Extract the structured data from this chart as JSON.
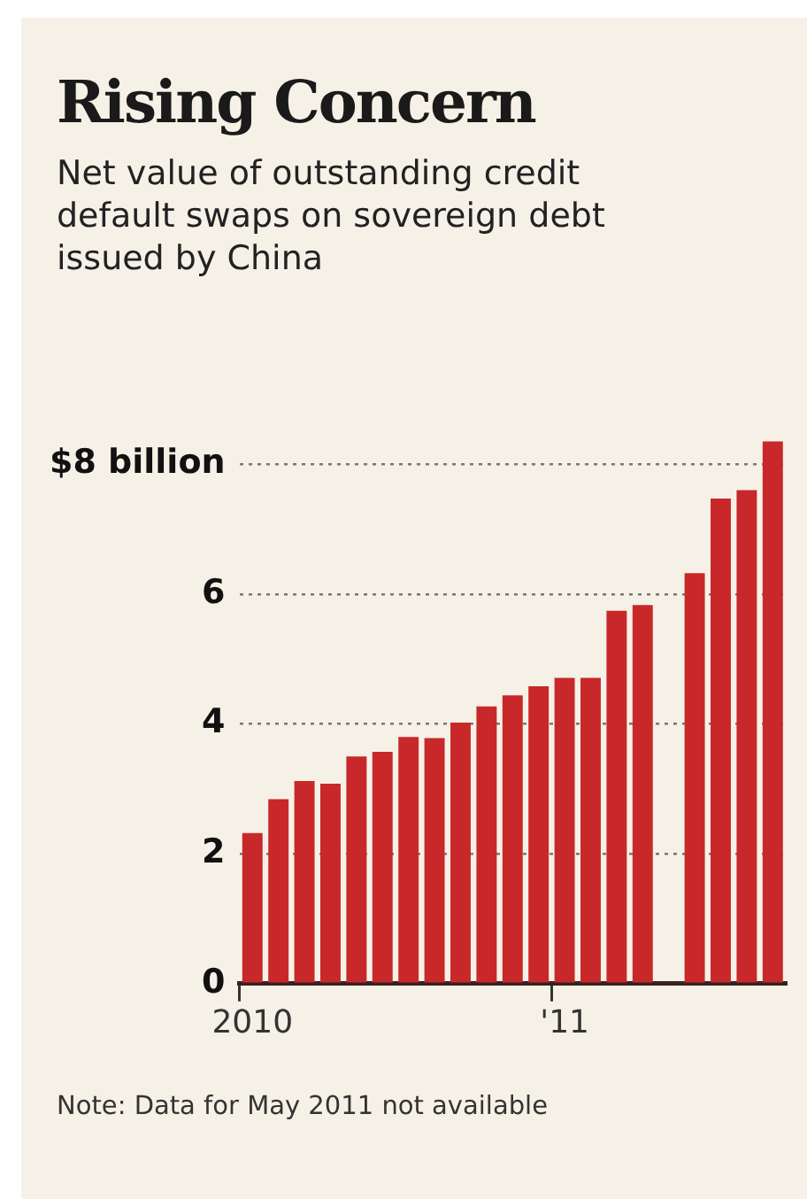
{
  "chart_data": {
    "type": "bar",
    "title": "Rising Concern",
    "subtitle": "Net value of outstanding credit default swaps on sovereign debt issued by China",
    "categories": [
      "2010",
      null,
      null,
      null,
      null,
      null,
      null,
      null,
      null,
      null,
      null,
      null,
      "'11",
      null,
      null,
      null,
      null,
      null,
      null,
      null,
      null
    ],
    "values": [
      2.32,
      2.84,
      3.12,
      3.08,
      3.5,
      3.57,
      3.8,
      3.78,
      4.02,
      4.27,
      4.44,
      4.58,
      4.71,
      4.71,
      5.74,
      5.83,
      null,
      6.32,
      7.47,
      7.6,
      8.35
    ],
    "color": "#c8282a",
    "ylim": [
      0,
      8.4
    ],
    "yticks": [
      0,
      2,
      4,
      6,
      {
        "value": 8,
        "label": "$8 billion"
      }
    ],
    "grid": "y",
    "legend": false,
    "annotations": [
      "Note: Data for May 2011 not available"
    ]
  }
}
